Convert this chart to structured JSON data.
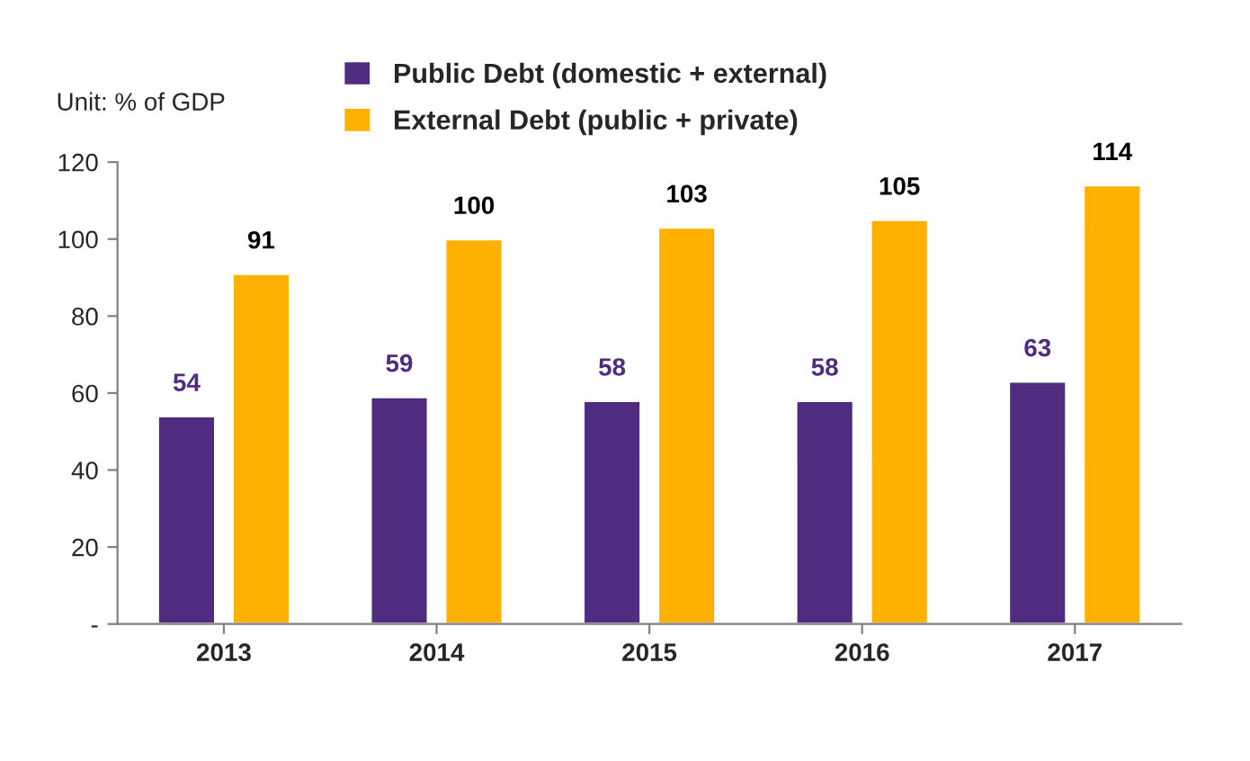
{
  "chart_data": {
    "type": "bar",
    "categories": [
      "2013",
      "2014",
      "2015",
      "2016",
      "2017"
    ],
    "series": [
      {
        "name": "Public Debt (domestic + external)",
        "color": "#4f2c7f",
        "values": [
          54,
          59,
          58,
          58,
          63
        ]
      },
      {
        "name": "External Debt (public + private)",
        "color": "#ffb000",
        "values": [
          91,
          100,
          103,
          105,
          114
        ]
      }
    ],
    "ylim": [
      0,
      120
    ],
    "yticks": [
      {
        "value": 0,
        "label": "-"
      },
      20,
      40,
      60,
      80,
      100,
      120
    ],
    "annotations": [
      "Unit: % of GDP"
    ],
    "data_labels": true,
    "legend": "top",
    "grid": false
  }
}
